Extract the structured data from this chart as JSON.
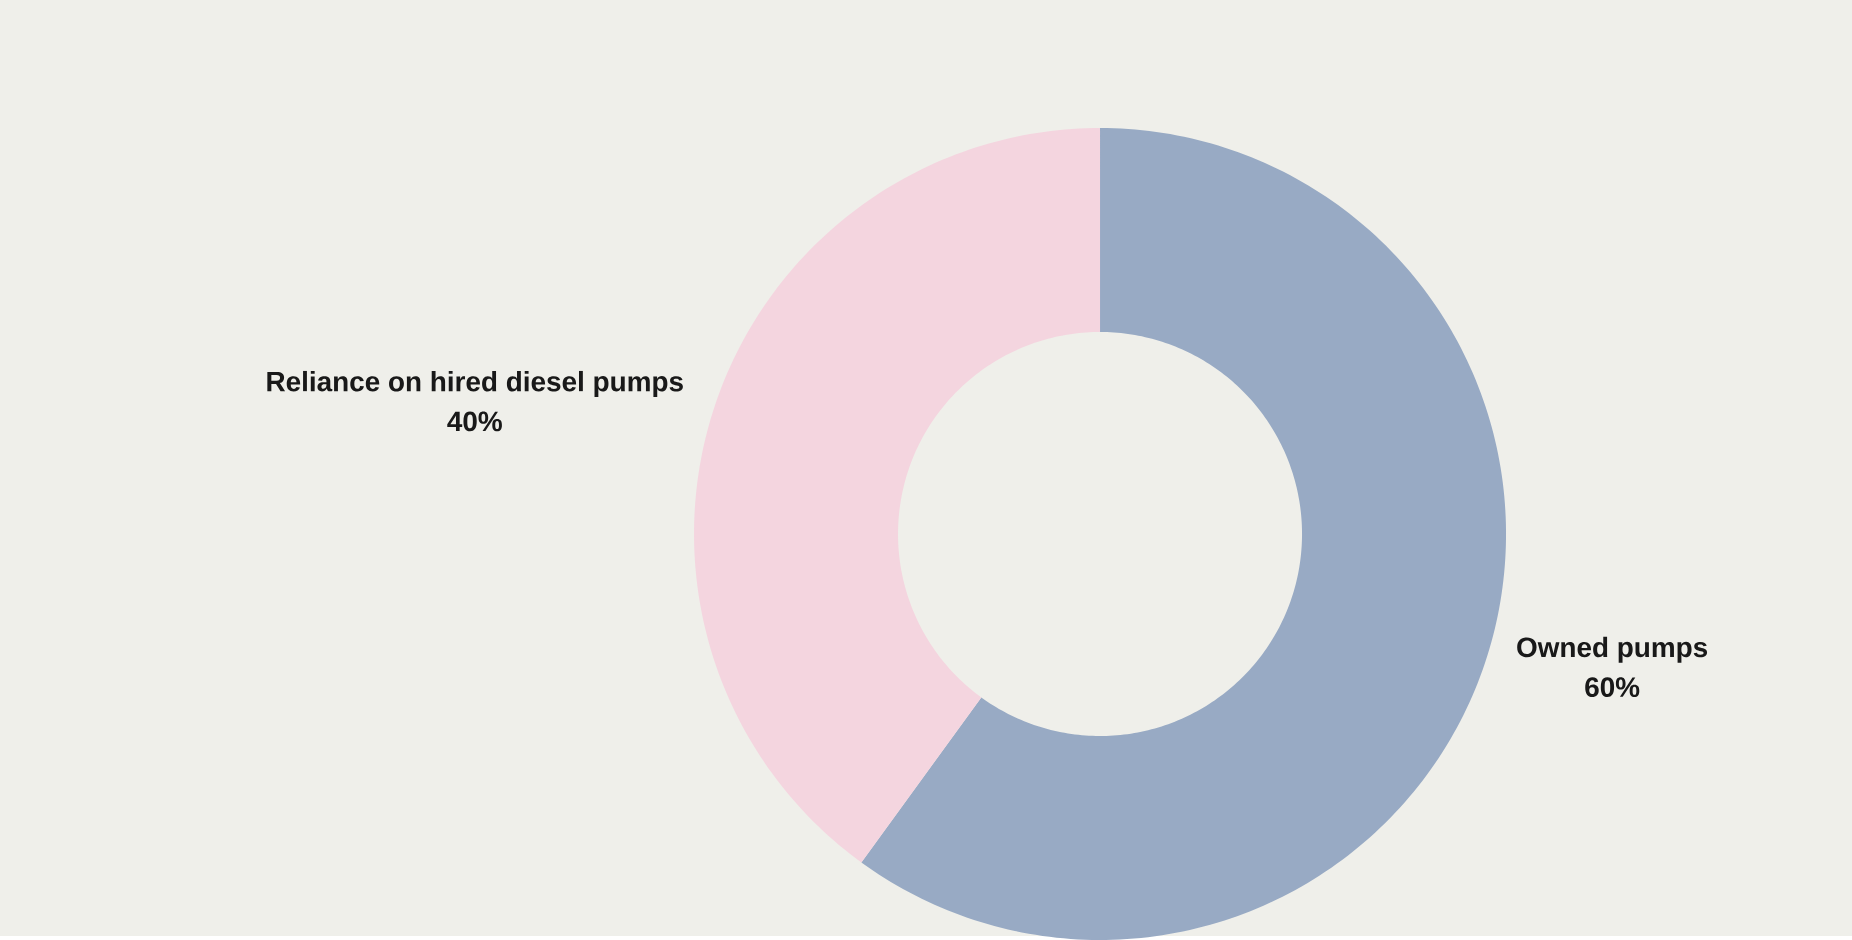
{
  "chart_data": {
    "type": "donut",
    "categories": [
      "Owned pumps",
      "Reliance on hired diesel pumps"
    ],
    "values": [
      60,
      40
    ],
    "value_labels": [
      "60%",
      "40%"
    ],
    "colors": [
      "#98aac4",
      "#f4d5df"
    ]
  }
}
